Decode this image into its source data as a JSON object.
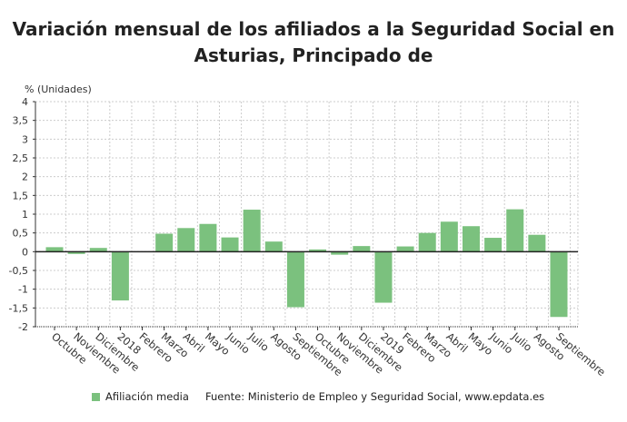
{
  "chart_data": {
    "type": "bar",
    "title": "Variación mensual de los afiliados a la Seguridad Social en Asturias, Principado de",
    "ylabel": "% (Unidades)",
    "ylim": [
      -2,
      4
    ],
    "yticks": [
      4,
      3.5,
      3,
      2.5,
      2,
      1.5,
      1,
      0.5,
      0,
      -0.5,
      -1,
      -1.5,
      -2
    ],
    "ytick_labels": [
      "4",
      "3,5",
      "3",
      "2,5",
      "2",
      "1,5",
      "1",
      "0,5",
      "0",
      "-0,5",
      "-1",
      "-1,5",
      "-2"
    ],
    "grid": true,
    "categories": [
      "Octubre",
      "Noviembre",
      "Diciembre",
      "2018",
      "Febrero",
      "Marzo",
      "Abril",
      "Mayo",
      "Junio",
      "Julio",
      "Agosto",
      "Septiembre",
      "Octubre",
      "Noviembre",
      "Diciembre",
      "2019",
      "Febrero",
      "Marzo",
      "Abril",
      "Mayo",
      "Junio",
      "Julio",
      "Agosto",
      "Septiembre"
    ],
    "series": [
      {
        "name": "Afiliación media",
        "color": "#7bc17e",
        "values": [
          0.12,
          -0.06,
          0.1,
          -1.3,
          0,
          0.48,
          0.63,
          0.74,
          0.38,
          1.12,
          0.27,
          -1.48,
          0.06,
          -0.08,
          0.15,
          -1.36,
          0.14,
          0.5,
          0.8,
          0.68,
          0.37,
          1.13,
          0.45,
          -1.74
        ]
      }
    ],
    "legend_position": "bottom-left",
    "source": "Fuente: Ministerio de Empleo y Seguridad Social, www.epdata.es"
  }
}
